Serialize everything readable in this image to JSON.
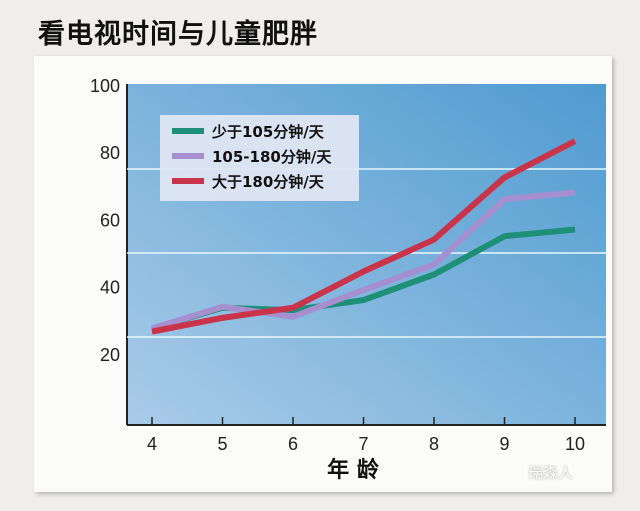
{
  "chart_data": {
    "type": "line",
    "title": "看电视时间与儿童肥胖",
    "xlabel": "年 龄",
    "ylabel": "",
    "x": [
      4,
      5,
      6,
      7,
      8,
      9,
      10
    ],
    "xlim": [
      3.65,
      10.15
    ],
    "ylim": [
      0,
      100
    ],
    "yticks": [
      20,
      40,
      60,
      80,
      100
    ],
    "gridlines": [
      25,
      50,
      75
    ],
    "legend_position": "top-left",
    "series": [
      {
        "name": "少于105分钟/天",
        "color": "#1f8f78",
        "values": [
          27.5,
          33.7,
          33,
          36,
          43.6,
          55,
          57
        ]
      },
      {
        "name": "105-180分钟/天",
        "color": "#a68fcf",
        "values": [
          27.5,
          34,
          31,
          39,
          46.6,
          66,
          68
        ]
      },
      {
        "name": "大于180分钟/天",
        "color": "#c9344a",
        "values": [
          26.6,
          30.7,
          33.7,
          44.5,
          54,
          72.5,
          83.3
        ]
      }
    ]
  },
  "watermark": "瑞森人"
}
